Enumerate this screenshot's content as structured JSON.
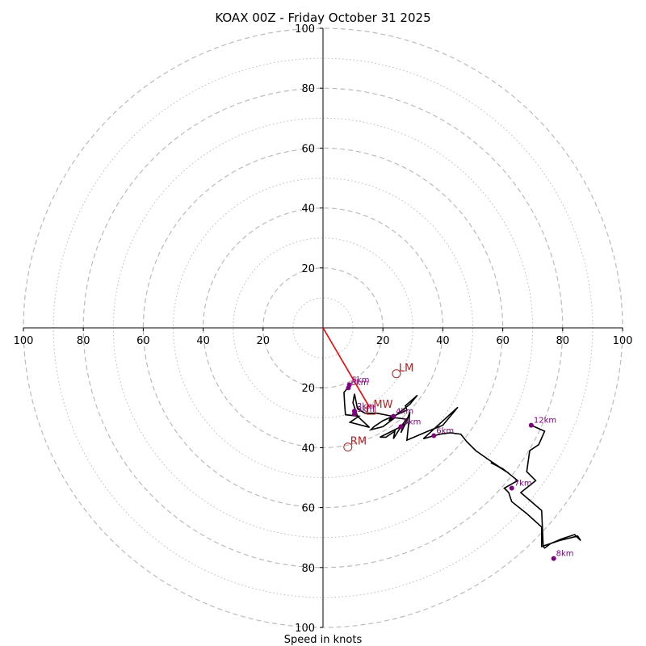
{
  "chart_data": {
    "type": "hodograph",
    "title": "KOAX 00Z - Friday October 31 2025",
    "xlabel": "Speed in knots",
    "xlim": [
      -100,
      100
    ],
    "ylim": [
      -100,
      100
    ],
    "ring_major": [
      20,
      40,
      60,
      80,
      100
    ],
    "ring_minor": [
      10,
      30,
      50,
      70,
      90
    ],
    "x_ticks": [
      "100",
      "80",
      "60",
      "40",
      "20",
      "20",
      "40",
      "60",
      "80",
      "100"
    ],
    "y_ticks": [
      "100",
      "80",
      "60",
      "40",
      "20",
      "20",
      "40",
      "60",
      "80",
      "100"
    ],
    "x_tick_values": [
      -100,
      -80,
      -60,
      -40,
      -20,
      20,
      40,
      60,
      80,
      100
    ],
    "y_tick_values": [
      100,
      80,
      60,
      40,
      20,
      -20,
      -40,
      -60,
      -80,
      -100
    ],
    "colors": {
      "trace": "#000000",
      "height": "#800080",
      "motion": "#ff0000",
      "motion_label": "#b22222",
      "grid": "#bbbbbb"
    },
    "trace": [
      [
        8.5,
        -19.5
      ],
      [
        8,
        -20.3
      ],
      [
        7.5,
        -21
      ],
      [
        7,
        -21.5
      ],
      [
        7.2,
        -25
      ],
      [
        7.5,
        -29
      ],
      [
        12,
        -29.5
      ],
      [
        9,
        -31.5
      ],
      [
        15.5,
        -33.2
      ],
      [
        11.5,
        -29.5
      ],
      [
        10,
        -25
      ],
      [
        10.5,
        -22
      ],
      [
        11.5,
        -27
      ],
      [
        14,
        -28.5
      ],
      [
        16,
        -28.5
      ],
      [
        18,
        -28.5
      ],
      [
        23,
        -29.5
      ],
      [
        22,
        -31
      ],
      [
        29,
        -25.5
      ],
      [
        31.5,
        -22.5
      ],
      [
        27.5,
        -26
      ],
      [
        28,
        -27.5
      ],
      [
        20,
        -31
      ],
      [
        17,
        -33
      ],
      [
        16,
        -34
      ],
      [
        20,
        -33
      ],
      [
        24,
        -30
      ],
      [
        28,
        -30.5
      ],
      [
        29,
        -29
      ],
      [
        26,
        -33
      ],
      [
        22,
        -35
      ],
      [
        19,
        -36.5
      ],
      [
        21,
        -36.5
      ],
      [
        24,
        -34.5
      ],
      [
        23.5,
        -37
      ],
      [
        26,
        -33
      ],
      [
        27,
        -32
      ],
      [
        26,
        -35
      ],
      [
        28,
        -31
      ],
      [
        29,
        -28
      ],
      [
        28,
        -37.5
      ],
      [
        35,
        -34.5
      ],
      [
        40,
        -32.5
      ],
      [
        45,
        -26.5
      ],
      [
        33.5,
        -37
      ],
      [
        37,
        -36
      ],
      [
        39,
        -35.5
      ],
      [
        42.5,
        -35
      ],
      [
        46,
        -35.5
      ],
      [
        48,
        -38
      ],
      [
        51,
        -41
      ],
      [
        56,
        -44.5
      ],
      [
        62,
        -48.5
      ],
      [
        58,
        -46
      ],
      [
        56,
        -45
      ],
      [
        60,
        -47
      ],
      [
        65,
        -51
      ],
      [
        60.5,
        -53.5
      ],
      [
        62,
        -55
      ],
      [
        63,
        -58
      ],
      [
        68,
        -62
      ],
      [
        73,
        -66.5
      ],
      [
        73,
        -73
      ],
      [
        79,
        -71
      ],
      [
        85,
        -69.5
      ],
      [
        86,
        -71
      ],
      [
        84,
        -69
      ],
      [
        79.5,
        -70.5
      ],
      [
        76,
        -72
      ],
      [
        74,
        -73.5
      ],
      [
        73.5,
        -73
      ],
      [
        73,
        -61
      ],
      [
        66,
        -55
      ],
      [
        71,
        -51
      ],
      [
        68,
        -48
      ],
      [
        69,
        -41
      ],
      [
        72,
        -39
      ],
      [
        74,
        -34.5
      ],
      [
        69.5,
        -32.5
      ]
    ],
    "height_points": [
      {
        "label": "5km",
        "u": 8.8,
        "v": -19
      },
      {
        "label": "6km",
        "u": 8.5,
        "v": -20
      },
      {
        "label": "2km",
        "u": 10.5,
        "v": -27.8
      },
      {
        "label": "3km",
        "u": 10.5,
        "v": -28.8
      },
      {
        "label": "4km",
        "u": 23.5,
        "v": -29.5
      },
      {
        "label": "5km",
        "u": 26,
        "v": -33
      },
      {
        "label": "6km",
        "u": 37,
        "v": -36
      },
      {
        "label": "7km",
        "u": 63,
        "v": -53.5
      },
      {
        "label": "8km",
        "u": 77,
        "v": -77
      },
      {
        "label": "12km",
        "u": 69.5,
        "v": -32.5
      }
    ],
    "motions": [
      {
        "label": "LM",
        "u": 24.5,
        "v": -15.3,
        "marker": "circle"
      },
      {
        "label": "MW",
        "u": 16,
        "v": -27.5,
        "marker": "square"
      },
      {
        "label": "RM",
        "u": 8.3,
        "v": -39.8,
        "marker": "circle"
      }
    ],
    "mean_wind_line": {
      "from": [
        0,
        0
      ],
      "to": [
        15.5,
        -26.5
      ]
    }
  }
}
